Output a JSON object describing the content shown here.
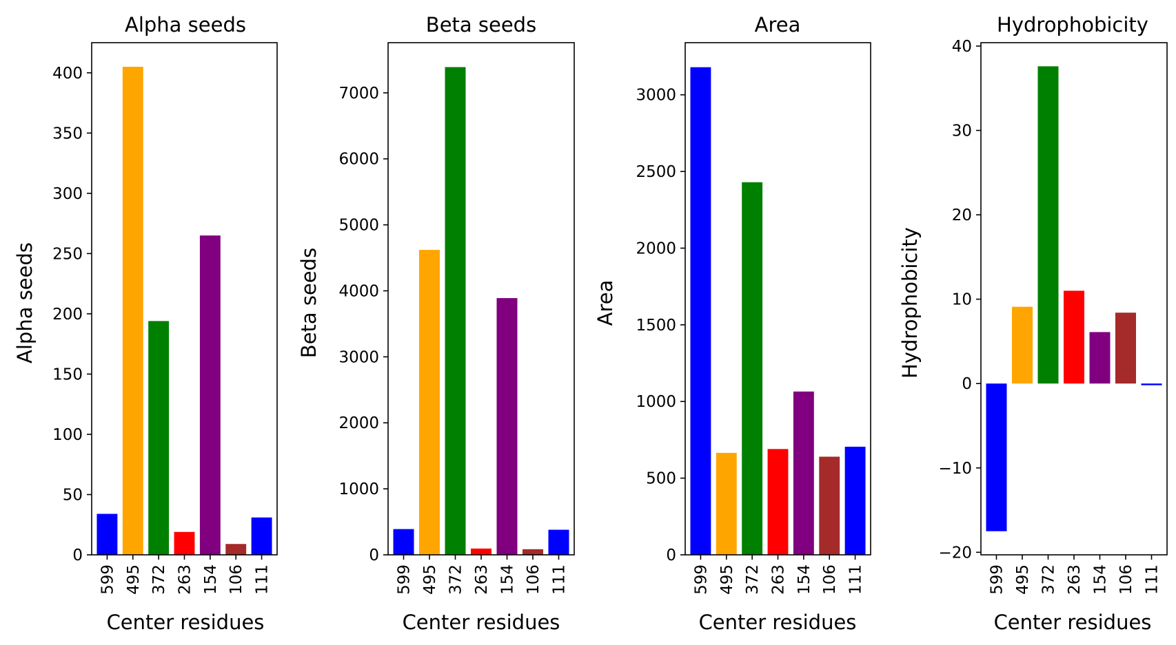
{
  "chart_data": [
    {
      "type": "bar",
      "title": "Alpha seeds",
      "xlabel": "Center residues",
      "ylabel": "Alpha seeds",
      "categories": [
        "599",
        "495",
        "372",
        "263",
        "154",
        "106",
        "111"
      ],
      "values": [
        34,
        405,
        194,
        19,
        265,
        9,
        31
      ],
      "colors": [
        "#0000ff",
        "#ffa500",
        "#008000",
        "#ff0000",
        "#800080",
        "#a52a2a",
        "#0000ff"
      ],
      "ylim": [
        0,
        425
      ],
      "yticks": [
        0,
        50,
        100,
        150,
        200,
        250,
        300,
        350,
        400
      ],
      "ytick_labels": [
        "0",
        "50",
        "100",
        "150",
        "200",
        "250",
        "300",
        "350",
        "400"
      ]
    },
    {
      "type": "bar",
      "title": "Beta seeds",
      "xlabel": "Center residues",
      "ylabel": "Beta seeds",
      "categories": [
        "599",
        "495",
        "372",
        "263",
        "154",
        "106",
        "111"
      ],
      "values": [
        390,
        4620,
        7390,
        95,
        3890,
        85,
        380
      ],
      "colors": [
        "#0000ff",
        "#ffa500",
        "#008000",
        "#ff0000",
        "#800080",
        "#a52a2a",
        "#0000ff"
      ],
      "ylim": [
        0,
        7760
      ],
      "yticks": [
        0,
        1000,
        2000,
        3000,
        4000,
        5000,
        6000,
        7000
      ],
      "ytick_labels": [
        "0",
        "1000",
        "2000",
        "3000",
        "4000",
        "5000",
        "6000",
        "7000"
      ]
    },
    {
      "type": "bar",
      "title": "Area",
      "xlabel": "Center residues",
      "ylabel": "Area",
      "categories": [
        "599",
        "495",
        "372",
        "263",
        "154",
        "106",
        "111"
      ],
      "values": [
        3180,
        665,
        2430,
        690,
        1065,
        640,
        705
      ],
      "colors": [
        "#0000ff",
        "#ffa500",
        "#008000",
        "#ff0000",
        "#800080",
        "#a52a2a",
        "#0000ff"
      ],
      "ylim": [
        0,
        3340
      ],
      "yticks": [
        0,
        500,
        1000,
        1500,
        2000,
        2500,
        3000
      ],
      "ytick_labels": [
        "0",
        "500",
        "1000",
        "1500",
        "2000",
        "2500",
        "3000"
      ]
    },
    {
      "type": "bar",
      "title": "Hydrophobicity",
      "xlabel": "Center residues",
      "ylabel": "Hydrophobicity",
      "categories": [
        "599",
        "495",
        "372",
        "263",
        "154",
        "106",
        "111"
      ],
      "values": [
        -17.5,
        9.1,
        37.6,
        11.0,
        6.1,
        8.4,
        -0.2
      ],
      "colors": [
        "#0000ff",
        "#ffa500",
        "#008000",
        "#ff0000",
        "#800080",
        "#a52a2a",
        "#0000ff"
      ],
      "ylim": [
        -20.3,
        40.4
      ],
      "yticks": [
        -20,
        -10,
        0,
        10,
        20,
        30,
        40
      ],
      "ytick_labels": [
        "−20",
        "−10",
        "0",
        "10",
        "20",
        "30",
        "40"
      ]
    }
  ]
}
